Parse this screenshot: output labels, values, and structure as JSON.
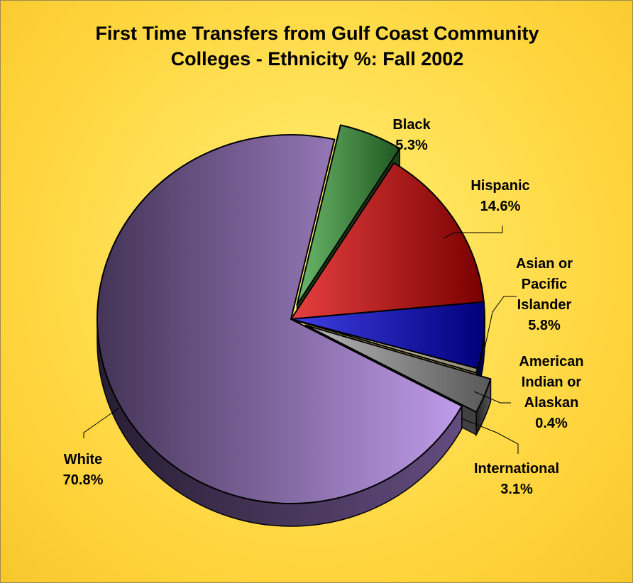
{
  "chart_data": {
    "type": "pie",
    "title_lines": [
      "First Time Transfers from Gulf Coast Community",
      "Colleges - Ethnicity %:  Fall 2002"
    ],
    "slices": [
      {
        "label": [
          "Black"
        ],
        "value": 5.3,
        "value_label": "5.3%",
        "color": "#3aa03a",
        "exploded": true
      },
      {
        "label": [
          "Hispanic"
        ],
        "value": 14.6,
        "value_label": "14.6%",
        "color": "#dd0000",
        "exploded": false
      },
      {
        "label": [
          "Asian or",
          "Pacific",
          "Islander"
        ],
        "value": 5.8,
        "value_label": "5.8%",
        "color": "#0000dd",
        "exploded": false
      },
      {
        "label": [
          "American",
          "Indian or",
          "Alaskan"
        ],
        "value": 0.4,
        "value_label": "0.4%",
        "color": "#fff6c8",
        "exploded": false
      },
      {
        "label": [
          "International"
        ],
        "value": 3.1,
        "value_label": "3.1%",
        "color": "#a0a0a0",
        "exploded": true
      },
      {
        "label": [
          "White"
        ],
        "value": 70.8,
        "value_label": "70.8%",
        "color": "#b48ae6",
        "exploded": false
      }
    ],
    "legend": "none",
    "style": "3d-exploded"
  }
}
